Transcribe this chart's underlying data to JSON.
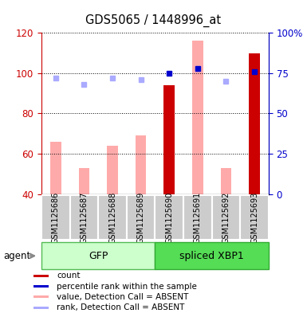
{
  "title": "GDS5065 / 1448996_at",
  "samples": [
    "GSM1125686",
    "GSM1125687",
    "GSM1125688",
    "GSM1125689",
    "GSM1125690",
    "GSM1125691",
    "GSM1125692",
    "GSM1125693"
  ],
  "count_values": [
    null,
    null,
    null,
    null,
    94,
    null,
    null,
    110
  ],
  "percentile_rank": [
    null,
    null,
    null,
    null,
    75,
    78,
    null,
    76
  ],
  "value_absent": [
    66,
    53,
    64,
    69,
    null,
    116,
    53,
    null
  ],
  "rank_absent": [
    72,
    68,
    72,
    71,
    null,
    78,
    70,
    null
  ],
  "ylim_left": [
    40,
    120
  ],
  "ylim_right": [
    0,
    100
  ],
  "y_ticks_left": [
    40,
    60,
    80,
    100,
    120
  ],
  "y_tick_labels_right": [
    "0",
    "25",
    "50",
    "75",
    "100%"
  ],
  "left_axis_color": "#cc0000",
  "right_axis_color": "#0000cc",
  "count_color": "#cc0000",
  "percentile_color": "#0000cc",
  "value_absent_color": "#ffaaaa",
  "rank_absent_color": "#aaaaff",
  "bar_bottom": 40,
  "gfp_color": "#ccffcc",
  "gfp_border": "#55bb55",
  "xbp1_color": "#55dd55",
  "xbp1_border": "#33aa33",
  "sample_box_color": "#cccccc",
  "figsize": [
    3.85,
    3.93
  ],
  "dpi": 100
}
